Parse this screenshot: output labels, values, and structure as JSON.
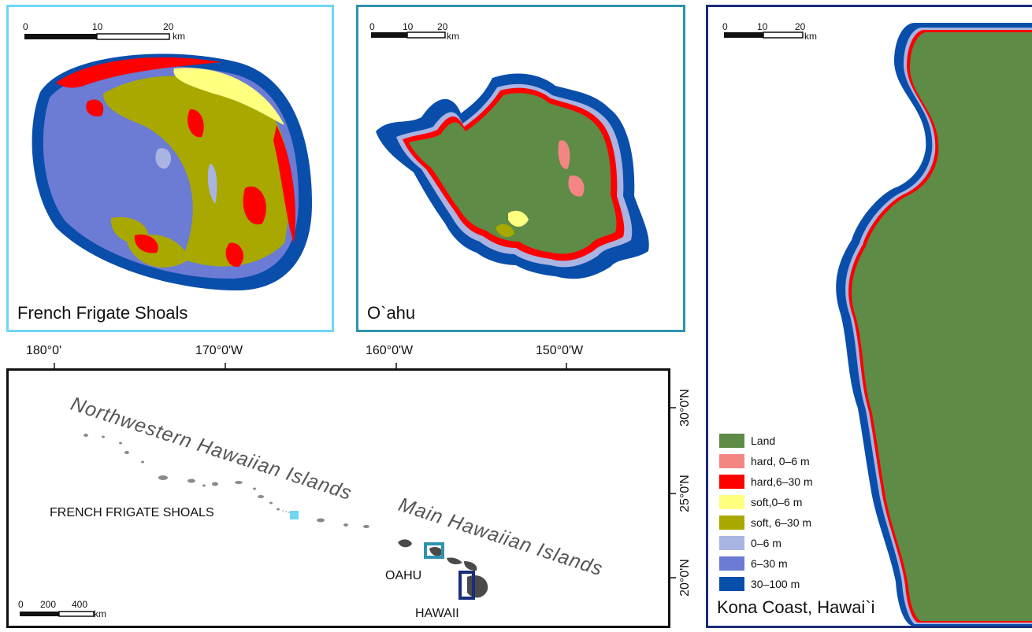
{
  "panels": {
    "ffs": {
      "title": "French Frigate Shoals",
      "scale": {
        "ticks": [
          "0",
          "10",
          "20"
        ],
        "unit": "km"
      }
    },
    "oahu": {
      "title": "O`ahu",
      "scale": {
        "ticks": [
          "0",
          "10",
          "20"
        ],
        "unit": "km"
      }
    },
    "kona": {
      "title": "Kona Coast, Hawai`i",
      "scale": {
        "ticks": [
          "0",
          "10",
          "20"
        ],
        "unit": "km"
      }
    }
  },
  "locator": {
    "lon_labels": [
      "180°0'",
      "170°0'W",
      "160°0'W",
      "150°0'W"
    ],
    "lat_labels": [
      "30°0'N",
      "25°0'N",
      "20°0'N"
    ],
    "region_labels": [
      "Northwestern Hawaiian Islands",
      "Main Hawaiian Islands"
    ],
    "place_labels": [
      "FRENCH FRIGATE SHOALS",
      "OAHU",
      "HAWAII"
    ],
    "scale": {
      "ticks": [
        "0",
        "200",
        "400"
      ],
      "unit": "km"
    }
  },
  "legend": [
    {
      "label": "Land",
      "color": "#5e8b46"
    },
    {
      "label": "hard, 0–6 m",
      "color": "#f38683"
    },
    {
      "label": "hard,6–30 m",
      "color": "#ff0000"
    },
    {
      "label": "soft,0–6 m",
      "color": "#ffff80"
    },
    {
      "label": "soft, 6–30 m",
      "color": "#a8a800"
    },
    {
      "label": "0–6 m",
      "color": "#a9b4e2"
    },
    {
      "label": "6–30 m",
      "color": "#6c7bd4"
    },
    {
      "label": "30–100 m",
      "color": "#0a4eab"
    }
  ],
  "colors": {
    "ffs_border": "#6fd6f3",
    "oahu_border": "#2f93ad",
    "kona_border": "#1a2d7a",
    "land": "#5e8b46",
    "deep": "#0a4eab"
  }
}
